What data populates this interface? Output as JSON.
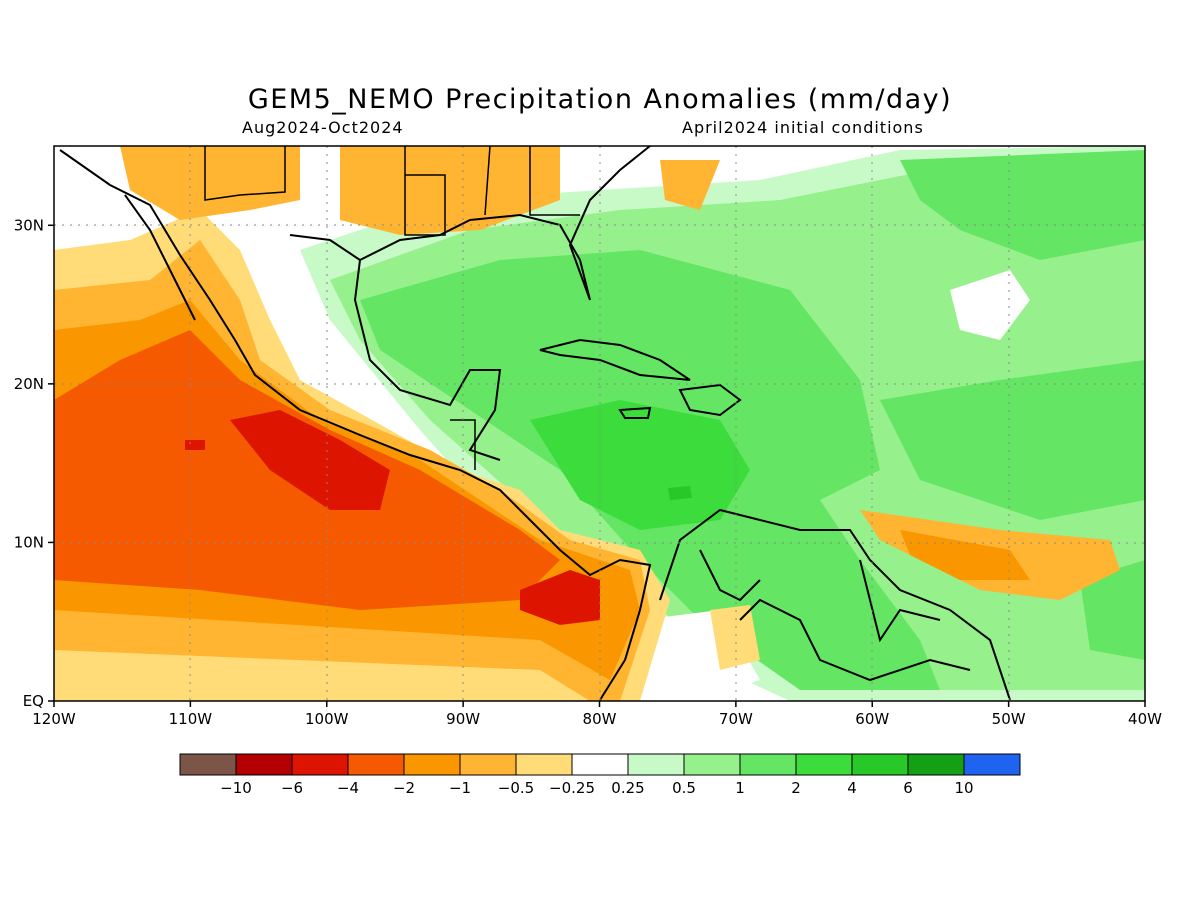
{
  "title": "GEM5_NEMO Precipitation Anomalies (mm/day)",
  "period": "Aug2024-Oct2024",
  "initial_conditions": "April2024 initial conditions",
  "map": {
    "lon_ticks": [
      "120W",
      "110W",
      "100W",
      "90W",
      "80W",
      "70W",
      "60W",
      "50W",
      "40W"
    ],
    "lat_ticks": [
      "EQ",
      "10N",
      "20N",
      "30N"
    ],
    "lon_range": [
      -120,
      -40
    ],
    "lat_range": [
      0,
      35
    ],
    "grid": "dotted"
  },
  "colorbar": {
    "labels": [
      "-10",
      "-6",
      "-4",
      "-2",
      "-1",
      "-0.5",
      "-0.25",
      "0.25",
      "0.5",
      "1",
      "2",
      "4",
      "6",
      "10"
    ],
    "colors": [
      "#7d5548",
      "#b40000",
      "#dc1400",
      "#f55a00",
      "#fa9600",
      "#ffb432",
      "#ffdc78",
      "#ffffff",
      "#c8fac8",
      "#96f08c",
      "#64e664",
      "#3cdc3c",
      "#28c828",
      "#14a014",
      "#1e64f0"
    ]
  }
}
